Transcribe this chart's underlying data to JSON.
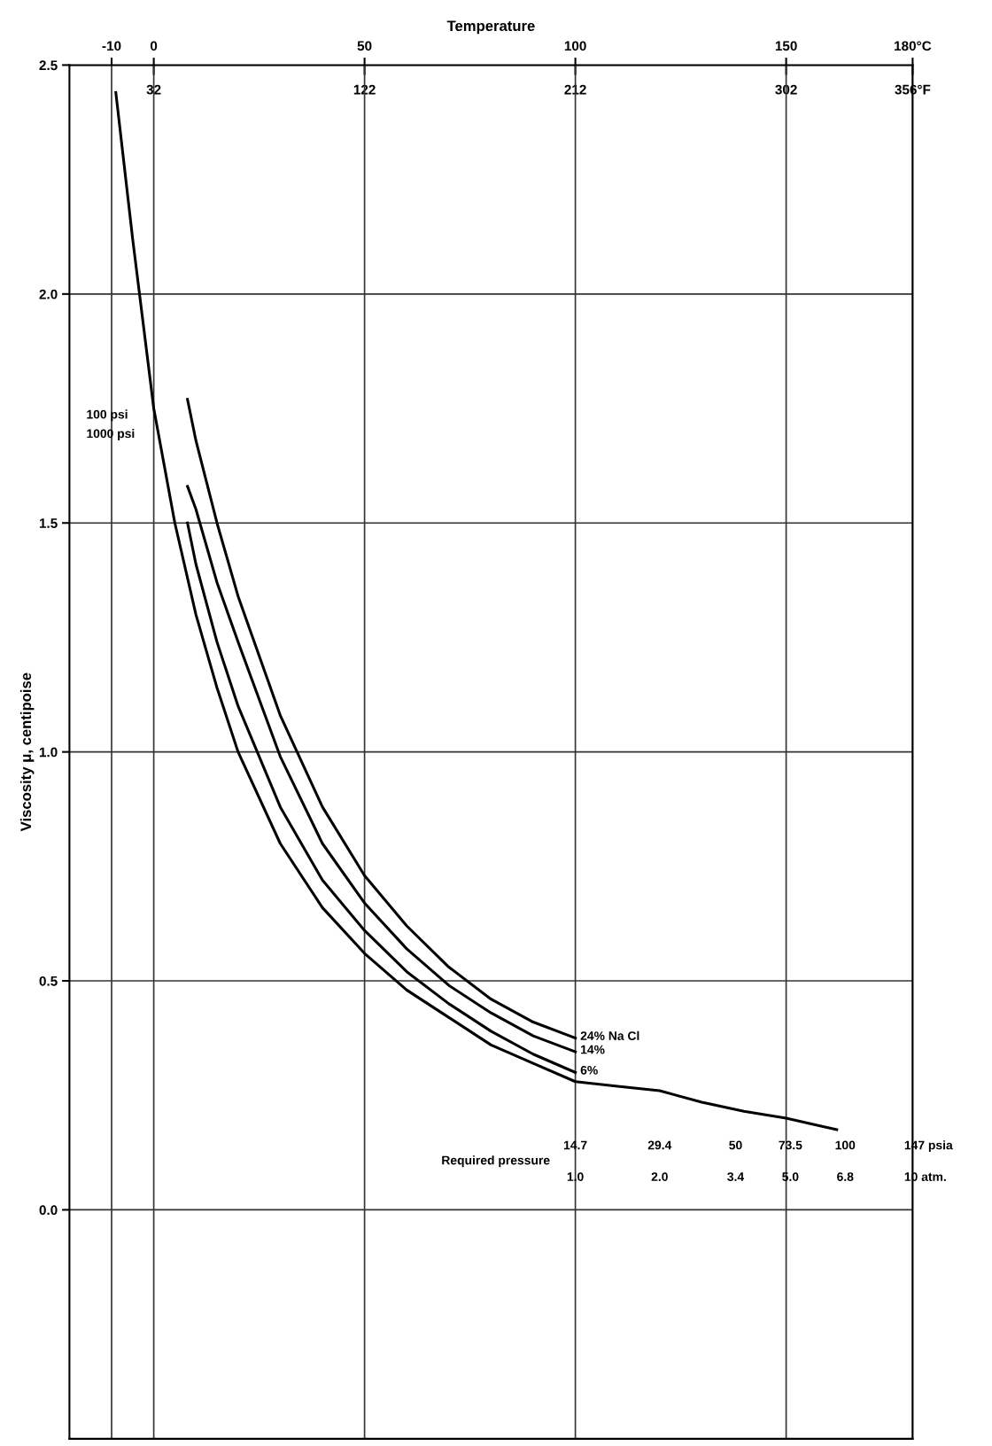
{
  "chart_data": {
    "type": "line",
    "xlabel": "Temperature",
    "ylabel": "Viscosity μ, centipoise",
    "xlim": [
      -20,
      180
    ],
    "xticks": [
      -10,
      0,
      50,
      100,
      150,
      {
        "value": 180,
        "label": "180°C"
      }
    ],
    "x2lim": [
      -4,
      356
    ],
    "x2ticks": [
      32,
      122,
      212,
      302,
      {
        "value": 356,
        "label": "356°F"
      }
    ],
    "ylim": [
      -0.5,
      2.5
    ],
    "yticks": [
      {
        "value": 0,
        "label": "0.0"
      },
      0.5,
      {
        "value": 1,
        "label": "1.0"
      },
      1.5,
      {
        "value": 2,
        "label": "2.0"
      },
      2.5
    ],
    "grid": true,
    "legend": false,
    "series": [
      {
        "color": "#000000",
        "x": [
          -9,
          -5,
          0,
          5,
          10,
          15,
          20,
          30,
          40,
          50,
          60,
          70,
          80,
          90,
          100,
          110,
          120,
          130,
          140,
          150,
          162
        ],
        "values": [
          2.44,
          2.12,
          1.75,
          1.5,
          1.3,
          1.14,
          1.0,
          0.8,
          0.66,
          0.56,
          0.48,
          0.42,
          0.36,
          0.32,
          0.28,
          0.27,
          0.26,
          0.235,
          0.215,
          0.2,
          0.175
        ]
      },
      {
        "name": "6%",
        "color": "#000000",
        "x": [
          8,
          10,
          15,
          20,
          30,
          40,
          50,
          60,
          70,
          80,
          90,
          100
        ],
        "values": [
          1.5,
          1.41,
          1.24,
          1.1,
          0.88,
          0.72,
          0.61,
          0.52,
          0.45,
          0.39,
          0.34,
          0.3
        ]
      },
      {
        "name": "14%",
        "color": "#000000",
        "x": [
          8,
          10,
          15,
          20,
          30,
          40,
          50,
          60,
          70,
          80,
          90,
          100
        ],
        "values": [
          1.58,
          1.53,
          1.37,
          1.24,
          0.99,
          0.8,
          0.67,
          0.57,
          0.49,
          0.43,
          0.38,
          0.345
        ]
      },
      {
        "name": "24% Na Cl",
        "color": "#000000",
        "x": [
          8,
          10,
          15,
          20,
          30,
          40,
          50,
          60,
          70,
          80,
          90,
          100
        ],
        "values": [
          1.77,
          1.68,
          1.5,
          1.34,
          1.08,
          0.88,
          0.73,
          0.62,
          0.53,
          0.46,
          0.41,
          0.375
        ]
      }
    ],
    "annotations": [
      "100 psi",
      "1000 psi",
      "Required pressure",
      "14.7",
      "1.0",
      "29.4",
      "2.0",
      "50",
      "3.4",
      "73.5",
      "5.0",
      "100",
      "6.8",
      "147 psia",
      "10 atm."
    ]
  }
}
